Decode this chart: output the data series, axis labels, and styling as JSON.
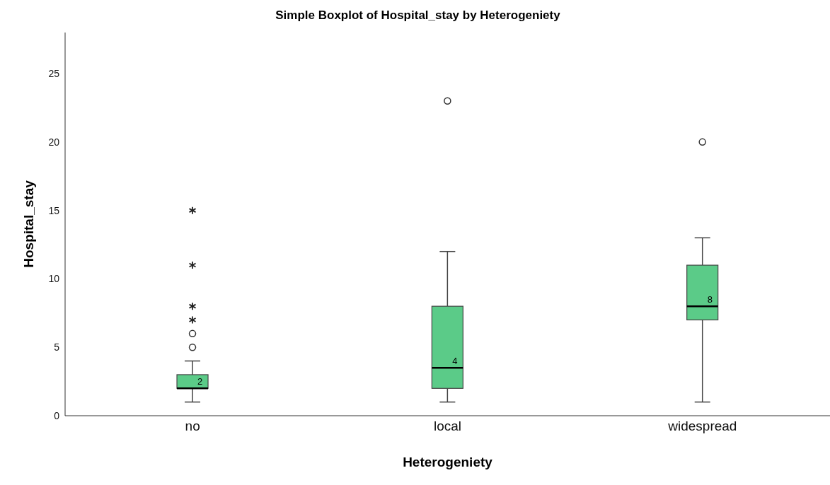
{
  "chart_data": {
    "type": "box",
    "title": "Simple Boxplot of Hospital_stay by Heterogeniety",
    "xlabel": "Heterogeniety",
    "ylabel": "Hospital_stay",
    "categories": [
      "no",
      "local",
      "widespread"
    ],
    "color": "#5bcb88",
    "boxes": [
      {
        "low": 1,
        "q1": 2,
        "median": 2,
        "q3": 3,
        "high": 4,
        "outliers": [
          5,
          6,
          7,
          8,
          11,
          15
        ]
      },
      {
        "low": 1,
        "q1": 2,
        "median": 3.5,
        "q3": 8,
        "high": 12,
        "outliers": [
          23
        ]
      },
      {
        "low": 1,
        "q1": 7,
        "median": 8,
        "q3": 11,
        "high": 13,
        "outliers": [
          20
        ]
      }
    ],
    "annotations": [
      {
        "text": "2",
        "x": "no",
        "y": 2
      },
      {
        "text": "4",
        "x": "local",
        "y": 3.5
      },
      {
        "text": "8",
        "x": "widespread",
        "y": 8
      }
    ],
    "ylim": [
      0,
      28
    ],
    "yticks": [
      0,
      5,
      10,
      15,
      20,
      25
    ],
    "grid": false
  }
}
